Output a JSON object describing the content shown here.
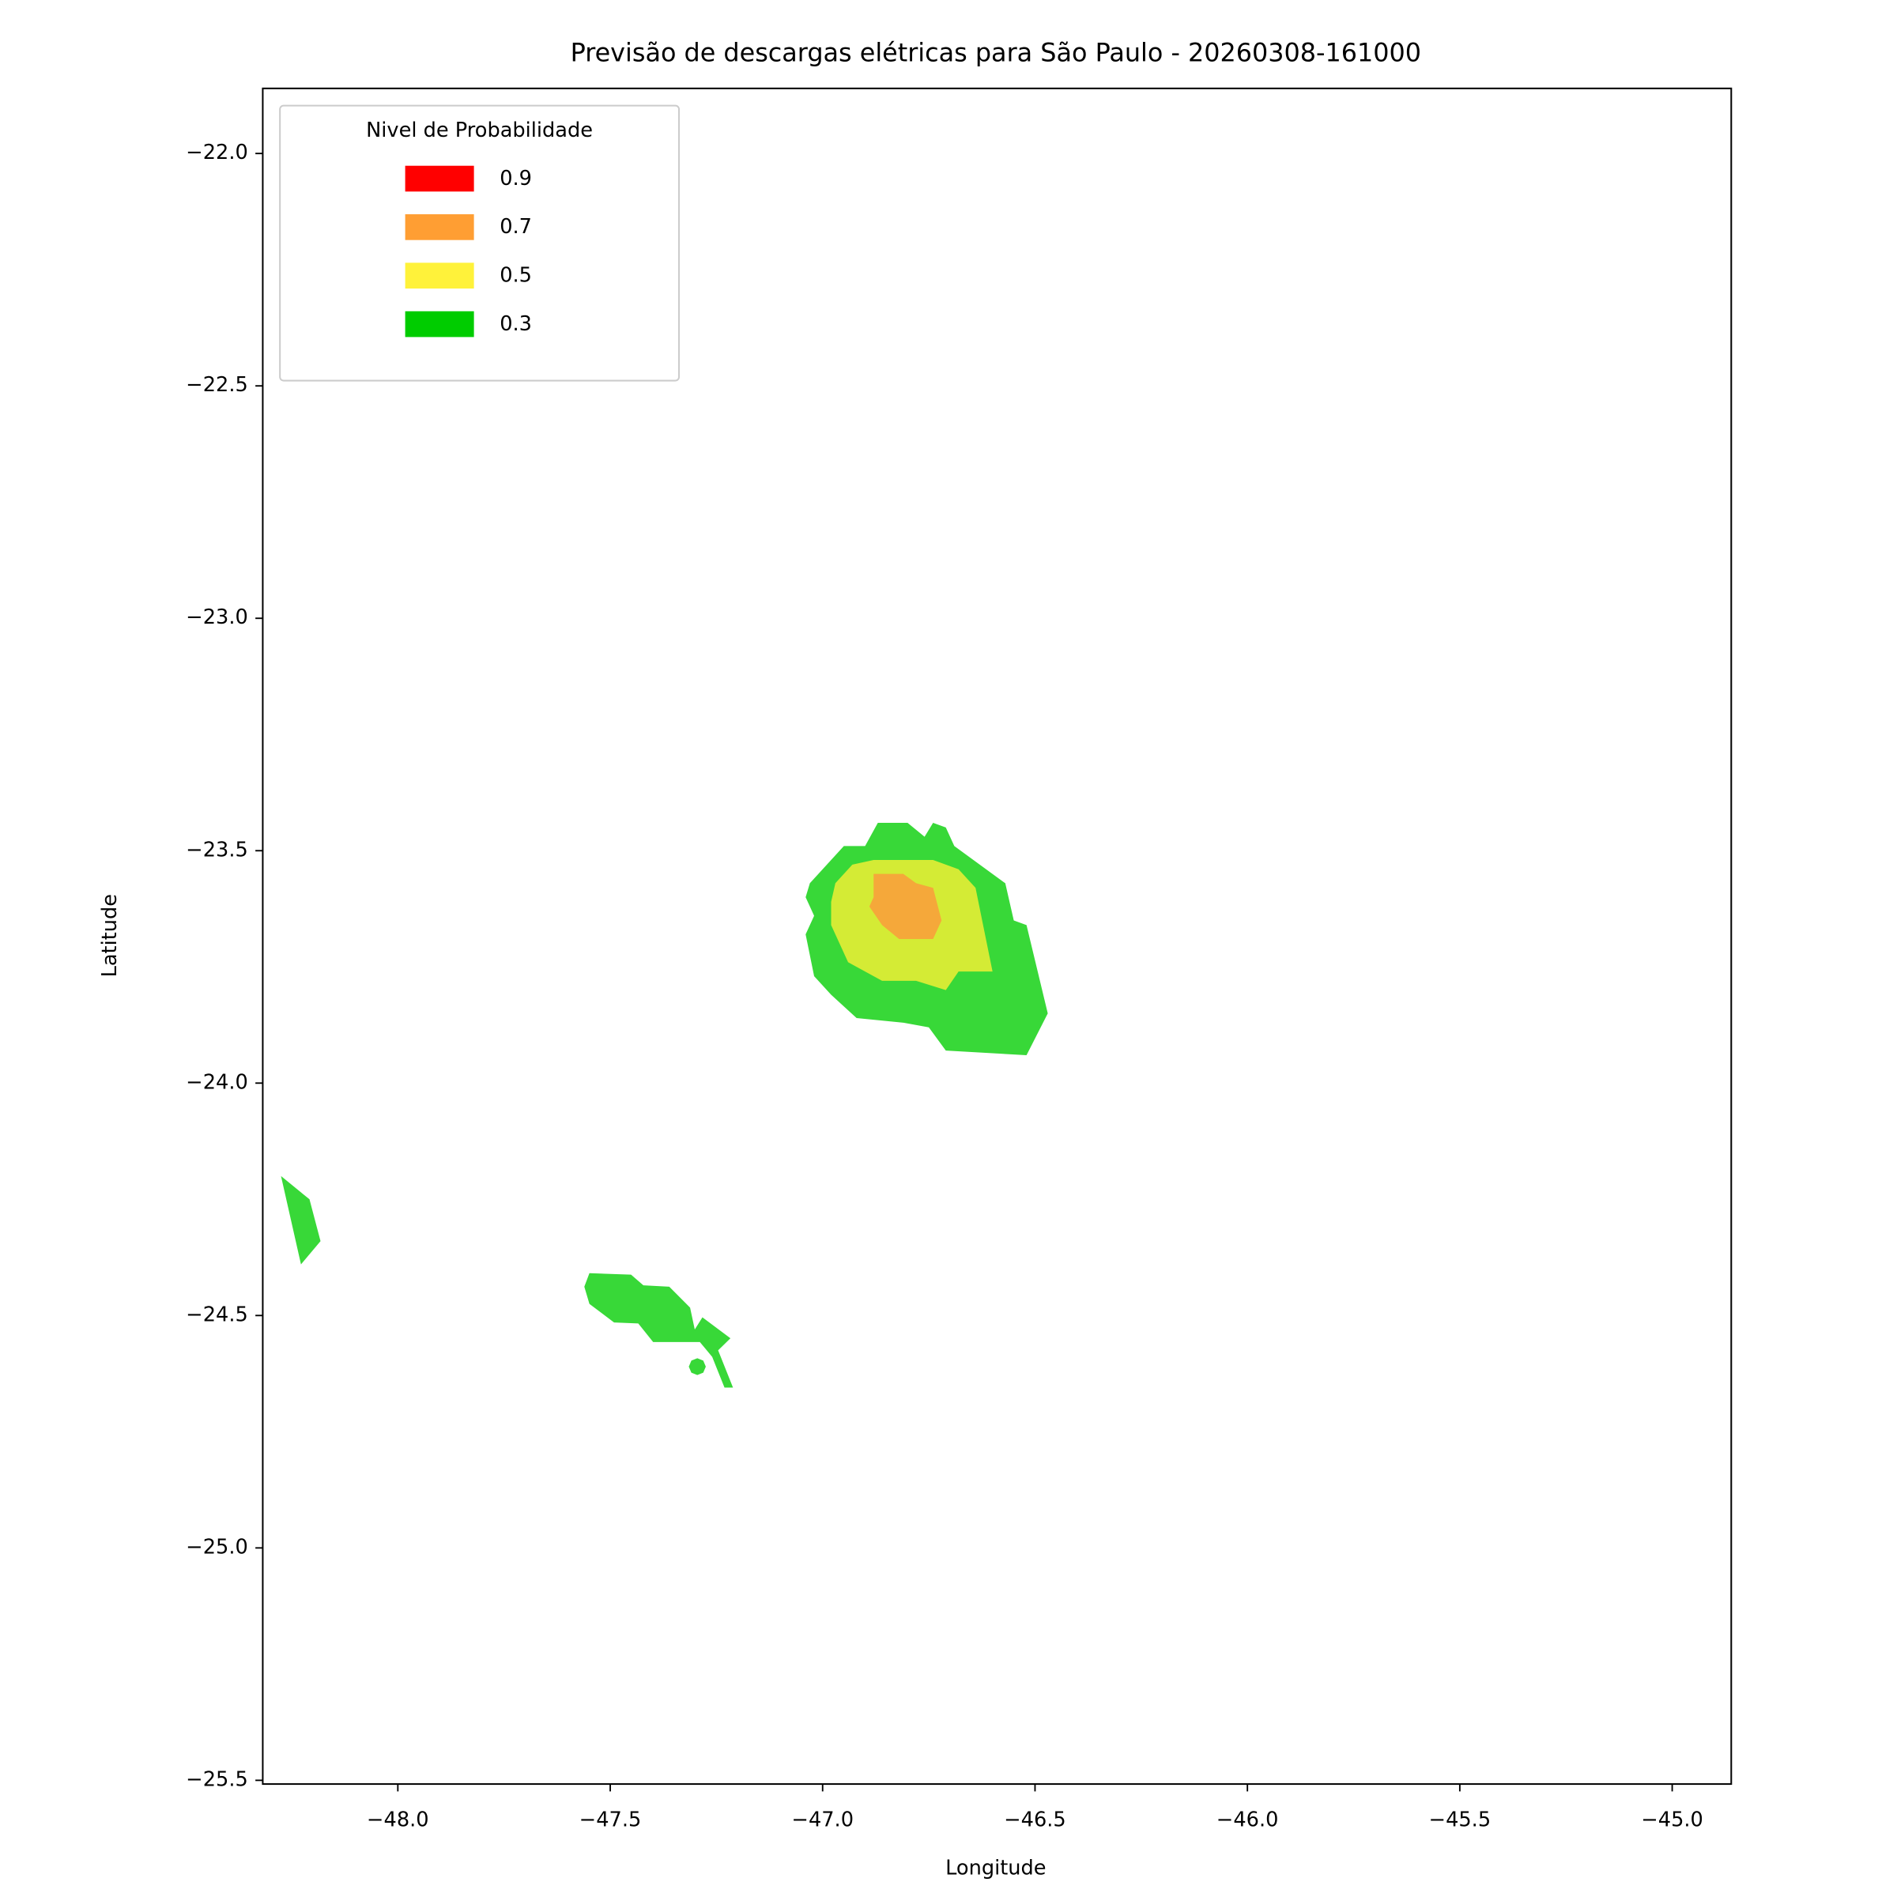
{
  "chart_data": {
    "type": "contour",
    "title": "Previsão de descargas elétricas para São Paulo - 20260308-161000",
    "xlabel": "Longitude",
    "ylabel": "Latitude",
    "xlim": [
      -48.318,
      -44.861
    ],
    "ylim": [
      -25.508,
      -21.86
    ],
    "xticks": [
      {
        "value": -48.0,
        "label": "−48.0"
      },
      {
        "value": -47.5,
        "label": "−47.5"
      },
      {
        "value": -47.0,
        "label": "−47.0"
      },
      {
        "value": -46.5,
        "label": "−46.5"
      },
      {
        "value": -46.0,
        "label": "−46.0"
      },
      {
        "value": -45.5,
        "label": "−45.5"
      },
      {
        "value": -45.0,
        "label": "−45.0"
      }
    ],
    "yticks": [
      {
        "value": -22.0,
        "label": "−22.0"
      },
      {
        "value": -22.5,
        "label": "−22.5"
      },
      {
        "value": -23.0,
        "label": "−23.0"
      },
      {
        "value": -23.5,
        "label": "−23.5"
      },
      {
        "value": -24.0,
        "label": "−24.0"
      },
      {
        "value": -24.5,
        "label": "−24.5"
      },
      {
        "value": -25.0,
        "label": "−25.0"
      },
      {
        "value": -25.5,
        "label": "−25.5"
      }
    ],
    "legend": {
      "title": "Nivel de Probabilidade",
      "loc": "upper left",
      "entries": [
        {
          "name": "0.9",
          "color": "#ff0000"
        },
        {
          "name": "0.7",
          "color": "#ff9e33"
        },
        {
          "name": "0.5",
          "color": "#fff23a"
        },
        {
          "name": "0.3",
          "color": "#00cc00"
        }
      ]
    },
    "regions": [
      {
        "color": "#38d838",
        "x": [
          -47.03,
          -46.95,
          -46.9,
          -46.87,
          -46.8,
          -46.76,
          -46.74,
          -46.71,
          -46.69,
          -46.57,
          -46.55,
          -46.52,
          -46.47,
          -46.52,
          -46.71,
          -46.75,
          -46.81,
          -46.92,
          -46.98,
          -47.02,
          -47.04,
          -47.02,
          -47.04
        ],
        "y": [
          -23.57,
          -23.49,
          -23.49,
          -23.44,
          -23.44,
          -23.47,
          -23.44,
          -23.45,
          -23.49,
          -23.57,
          -23.65,
          -23.66,
          -23.85,
          -23.94,
          -23.93,
          -23.88,
          -23.87,
          -23.86,
          -23.81,
          -23.77,
          -23.68,
          -23.64,
          -23.6
        ]
      },
      {
        "color": "#d4eb35",
        "x": [
          -46.97,
          -46.93,
          -46.88,
          -46.74,
          -46.68,
          -46.64,
          -46.6,
          -46.68,
          -46.71,
          -46.78,
          -46.86,
          -46.9,
          -46.94,
          -46.98,
          -46.98
        ],
        "y": [
          -23.57,
          -23.53,
          -23.52,
          -23.52,
          -23.54,
          -23.58,
          -23.76,
          -23.76,
          -23.8,
          -23.78,
          -23.78,
          -23.76,
          -23.74,
          -23.66,
          -23.61
        ]
      },
      {
        "color": "#f5a83a",
        "x": [
          -46.88,
          -46.81,
          -46.78,
          -46.74,
          -46.72,
          -46.74,
          -46.82,
          -46.86,
          -46.89,
          -46.88
        ],
        "y": [
          -23.55,
          -23.55,
          -23.57,
          -23.58,
          -23.65,
          -23.69,
          -23.69,
          -23.66,
          -23.62,
          -23.6
        ]
      },
      {
        "color": "#38d838",
        "x": [
          -48.275,
          -48.208,
          -48.182,
          -48.228
        ],
        "y": [
          -24.2,
          -24.25,
          -24.34,
          -24.39
        ]
      },
      {
        "color": "#38d838",
        "x": [
          -47.549,
          -47.451,
          -47.422,
          -47.361,
          -47.312,
          -47.301,
          -47.283,
          -47.217,
          -47.246,
          -47.211,
          -47.231,
          -47.26,
          -47.289,
          -47.399,
          -47.434,
          -47.491,
          -47.549,
          -47.561
        ],
        "y": [
          -24.409,
          -24.412,
          -24.435,
          -24.438,
          -24.483,
          -24.53,
          -24.504,
          -24.549,
          -24.575,
          -24.655,
          -24.655,
          -24.589,
          -24.557,
          -24.557,
          -24.517,
          -24.515,
          -24.475,
          -24.438
        ]
      },
      {
        "color": "#38d838",
        "x": [
          -47.275,
          -47.281,
          -47.295,
          -47.309,
          -47.315,
          -47.309,
          -47.295,
          -47.281
        ],
        "y": [
          -24.61,
          -24.597,
          -24.592,
          -24.597,
          -24.61,
          -24.623,
          -24.628,
          -24.623
        ]
      }
    ]
  }
}
